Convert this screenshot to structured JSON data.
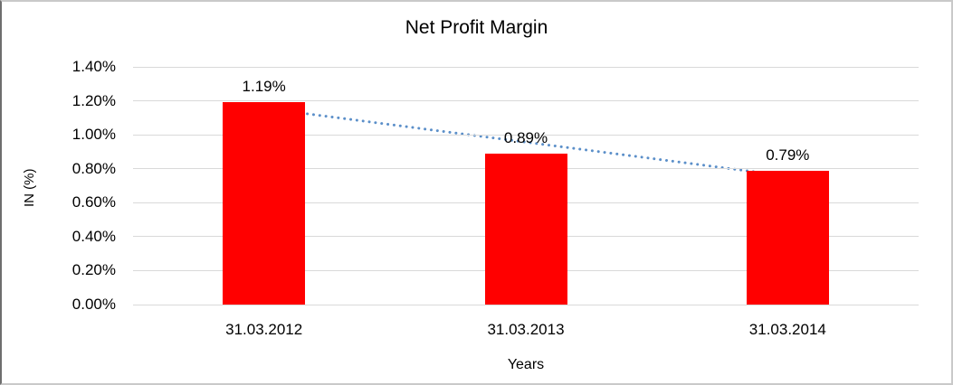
{
  "chart": {
    "title": "Net Profit Margin",
    "xlabel": "Years",
    "ylabel": "IN (%)"
  },
  "chart_data": {
    "type": "bar",
    "title": "Net Profit Margin",
    "xlabel": "Years",
    "ylabel": "IN (%)",
    "categories": [
      "31.03.2012",
      "31.03.2013",
      "31.03.2014"
    ],
    "values": [
      1.19,
      0.89,
      0.79
    ],
    "data_labels": [
      "1.19%",
      "0.89%",
      "0.79%"
    ],
    "y_tick_labels": [
      "0.00%",
      "0.20%",
      "0.40%",
      "0.60%",
      "0.80%",
      "1.00%",
      "1.20%",
      "1.40%"
    ],
    "y_tick_values": [
      0,
      0.2,
      0.4,
      0.6,
      0.8,
      1.0,
      1.2,
      1.4
    ],
    "ylim": [
      0,
      1.4
    ],
    "grid": true,
    "legend": "none",
    "bar_color": "#FF0000",
    "gridline_color": "#D9D9D9",
    "trendline": {
      "type": "linear",
      "style": "dotted",
      "color": "#5B8FC9"
    }
  }
}
